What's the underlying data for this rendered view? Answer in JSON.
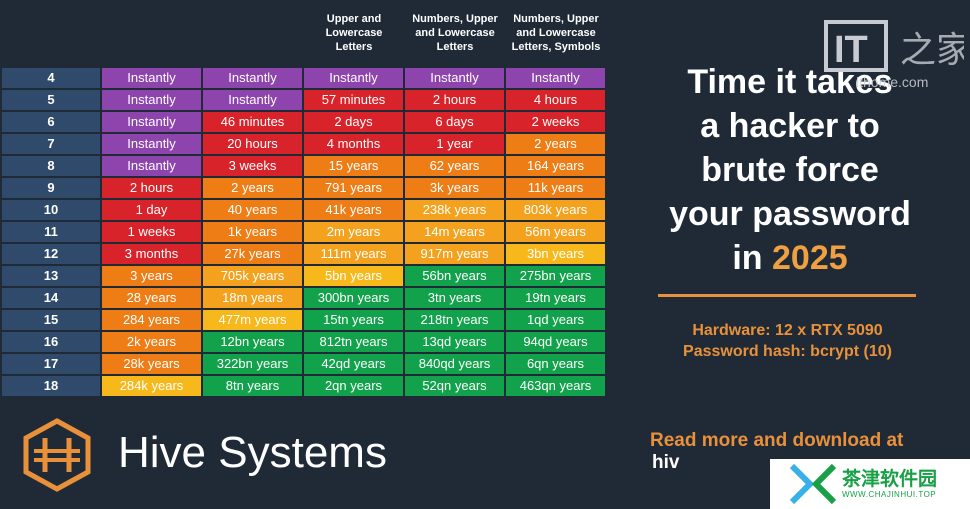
{
  "columns": {
    "headers": [
      "",
      "",
      "",
      "Upper and\nLowercase\nLetters",
      "Numbers, Upper\nand Lowercase\nLetters",
      "Numbers, Upper\nand Lowercase\nLetters, Symbols"
    ]
  },
  "rows": [
    {
      "chars": "4",
      "cells": [
        "Instantly",
        "Instantly",
        "Instantly",
        "Instantly",
        "Instantly"
      ]
    },
    {
      "chars": "5",
      "cells": [
        "Instantly",
        "Instantly",
        "57 minutes",
        "2 hours",
        "4 hours"
      ]
    },
    {
      "chars": "6",
      "cells": [
        "Instantly",
        "46 minutes",
        "2 days",
        "6 days",
        "2 weeks"
      ]
    },
    {
      "chars": "7",
      "cells": [
        "Instantly",
        "20 hours",
        "4 months",
        "1 year",
        "2 years"
      ]
    },
    {
      "chars": "8",
      "cells": [
        "Instantly",
        "3 weeks",
        "15 years",
        "62 years",
        "164 years"
      ]
    },
    {
      "chars": "9",
      "cells": [
        "2 hours",
        "2 years",
        "791 years",
        "3k years",
        "11k years"
      ]
    },
    {
      "chars": "10",
      "cells": [
        "1 day",
        "40 years",
        "41k years",
        "238k years",
        "803k years"
      ]
    },
    {
      "chars": "11",
      "cells": [
        "1 weeks",
        "1k years",
        "2m years",
        "14m years",
        "56m years"
      ]
    },
    {
      "chars": "12",
      "cells": [
        "3 months",
        "27k years",
        "111m years",
        "917m years",
        "3bn years"
      ]
    },
    {
      "chars": "13",
      "cells": [
        "3 years",
        "705k years",
        "5bn years",
        "56bn years",
        "275bn years"
      ]
    },
    {
      "chars": "14",
      "cells": [
        "28 years",
        "18m years",
        "300bn years",
        "3tn years",
        "19tn years"
      ]
    },
    {
      "chars": "15",
      "cells": [
        "284 years",
        "477m years",
        "15tn years",
        "218tn years",
        "1qd years"
      ]
    },
    {
      "chars": "16",
      "cells": [
        "2k years",
        "12bn years",
        "812tn years",
        "13qd years",
        "94qd years"
      ]
    },
    {
      "chars": "17",
      "cells": [
        "28k years",
        "322bn years",
        "42qd years",
        "840qd years",
        "6qn years"
      ]
    },
    {
      "chars": "18",
      "cells": [
        "284k years",
        "8tn years",
        "2qn years",
        "52qn years",
        "463qn years"
      ]
    }
  ],
  "row_colors": [
    [
      "purple",
      "purple",
      "purple",
      "purple",
      "purple"
    ],
    [
      "purple",
      "purple",
      "red",
      "red",
      "red"
    ],
    [
      "purple",
      "red",
      "red",
      "red",
      "red"
    ],
    [
      "purple",
      "red",
      "red",
      "red",
      "orange"
    ],
    [
      "purple",
      "red",
      "orange",
      "orange",
      "orange"
    ],
    [
      "red",
      "orange",
      "orange",
      "orange",
      "orange"
    ],
    [
      "red",
      "orange",
      "orange",
      "amber",
      "amber"
    ],
    [
      "red",
      "orange",
      "amber",
      "amber",
      "amber"
    ],
    [
      "red",
      "orange",
      "amber",
      "amber",
      "yellow"
    ],
    [
      "orange",
      "amber",
      "yellow",
      "green",
      "green"
    ],
    [
      "orange",
      "amber",
      "green",
      "green",
      "green"
    ],
    [
      "orange",
      "yellow",
      "green",
      "green",
      "green"
    ],
    [
      "orange",
      "green",
      "green",
      "green",
      "green"
    ],
    [
      "orange",
      "green",
      "green",
      "green",
      "green"
    ],
    [
      "yellow",
      "green",
      "green",
      "green",
      "green"
    ]
  ],
  "colors": {
    "purple": "#8e44ad",
    "red": "#d8232a",
    "orange": "#ee7d16",
    "amber": "#f4a21e",
    "yellow": "#f6b81b",
    "green": "#12a24b",
    "accent": "#e8913a",
    "background": "#1f2a36"
  },
  "headline": {
    "line1": "Time it takes",
    "line2": "a hacker to",
    "line3": "brute force",
    "line4": "your password",
    "line5_prefix": "in ",
    "year": "2025"
  },
  "hardware": {
    "line1": "Hardware: 12 x RTX 5090",
    "line2": "Password hash: bcrypt (10)"
  },
  "brand": {
    "name": "Hive Systems",
    "logo_icon": "hive-hexagon-logo"
  },
  "footer": {
    "read_more": "Read more and download at",
    "url": "hiv"
  },
  "watermarks": {
    "it_home_url": "ithome.com",
    "corner_name": "茶津软件园",
    "corner_url": "WWW.CHAJINHUI.TOP"
  }
}
